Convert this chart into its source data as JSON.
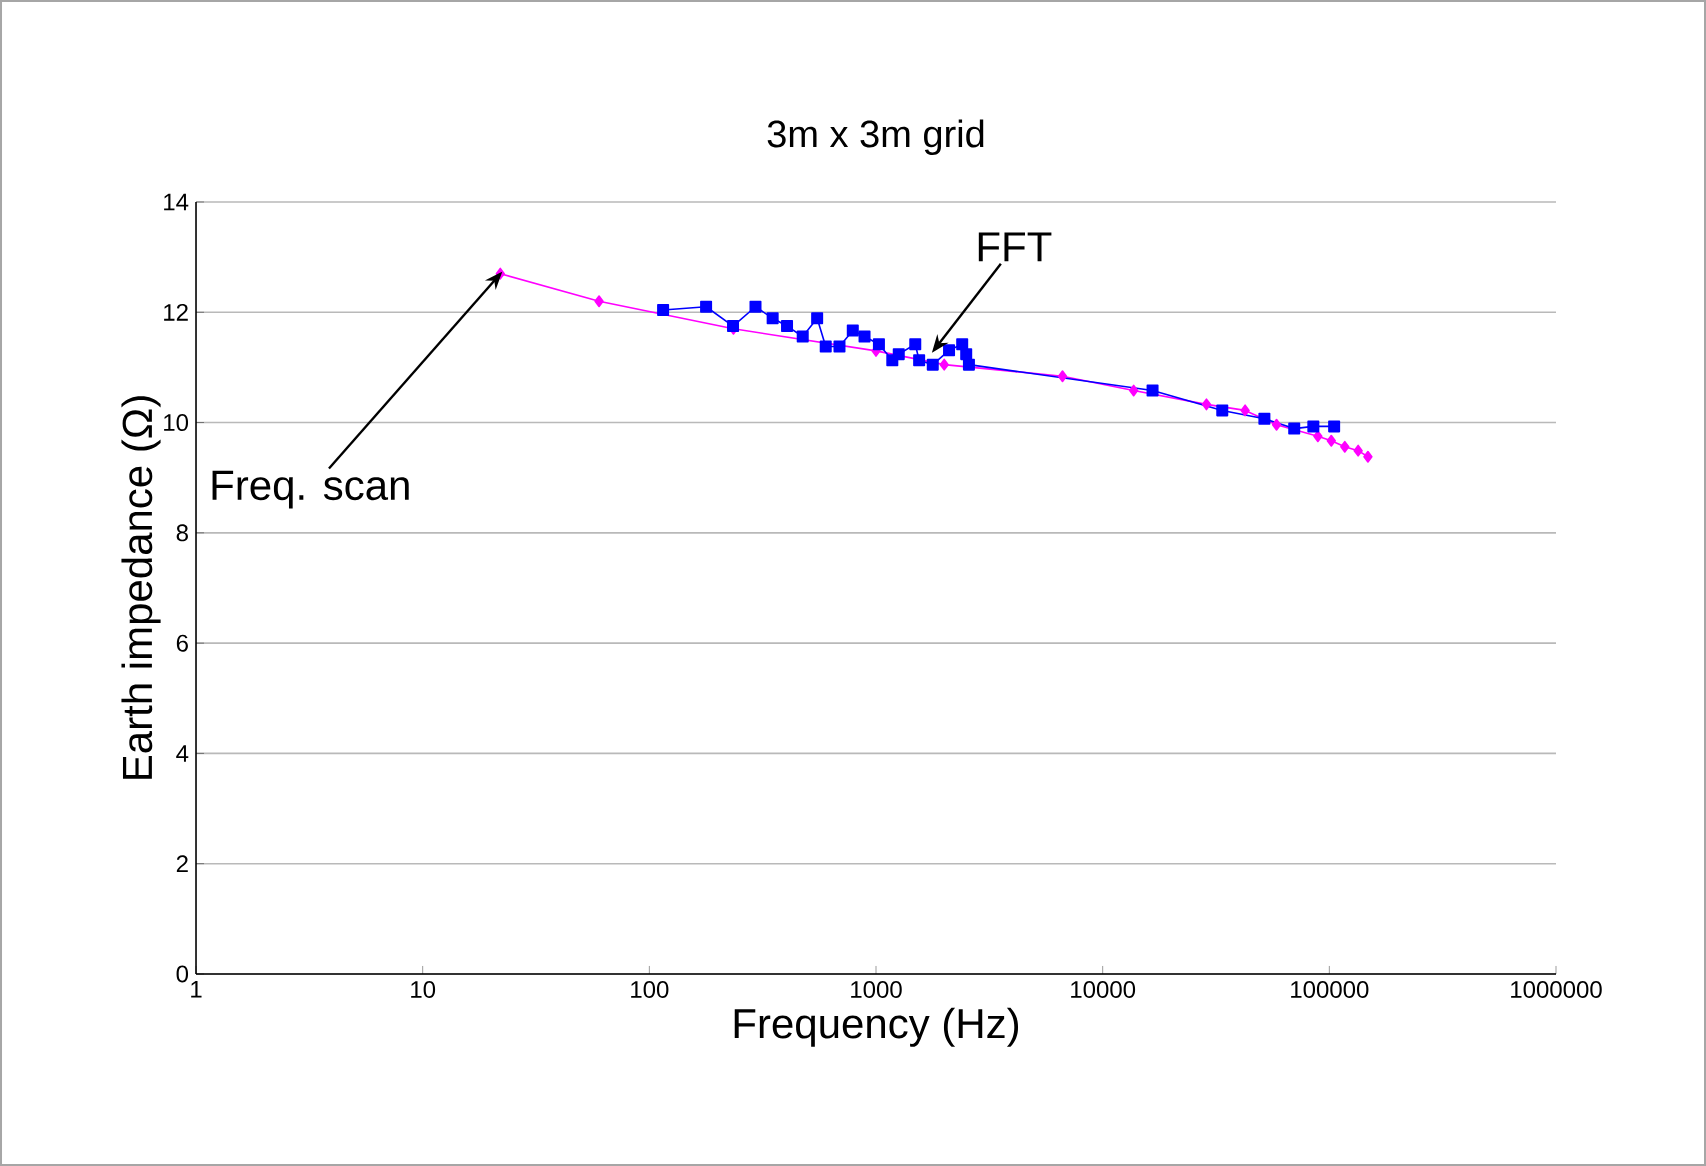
{
  "chart_data": {
    "type": "line",
    "title": "3m x 3m grid",
    "xlabel": "Frequency (Hz)",
    "ylabel": "Earth impedance (Ω)",
    "log": "x",
    "grid": "y",
    "xlim": [
      1,
      1000000
    ],
    "xticks": [
      1,
      10,
      100,
      1000,
      10000,
      100000,
      1000000
    ],
    "ylim": [
      0,
      14
    ],
    "yticks": [
      0,
      2,
      4,
      6,
      8,
      10,
      12,
      14
    ],
    "annotations": [
      {
        "text": "Freq. scan",
        "x": 22,
        "y": 12.7
      },
      {
        "text": "FFT",
        "x": 1800,
        "y": 11.3
      }
    ],
    "series": [
      {
        "color": "#ff00ff",
        "marker": "diamond",
        "x": [
          22,
          60,
          235,
          1000,
          2000,
          6650,
          13700,
          28700,
          42500,
          58500,
          89000,
          102000,
          117000,
          134000,
          148000
        ],
        "values": [
          12.7,
          12.2,
          11.7,
          11.3,
          11.05,
          10.84,
          10.58,
          10.33,
          10.22,
          9.96,
          9.75,
          9.67,
          9.56,
          9.49,
          9.38
        ]
      },
      {
        "color": "#0000ff",
        "marker": "square",
        "x": [
          115,
          178,
          234,
          294,
          350,
          405,
          475,
          550,
          600,
          690,
          790,
          890,
          1030,
          1180,
          1260,
          1490,
          1550,
          1780,
          2100,
          2400,
          2500,
          2570,
          16600,
          33700,
          51700,
          70000,
          85000,
          105000
        ],
        "values": [
          12.04,
          12.1,
          11.75,
          12.1,
          11.89,
          11.75,
          11.56,
          11.89,
          11.38,
          11.38,
          11.67,
          11.56,
          11.42,
          11.13,
          11.24,
          11.42,
          11.13,
          11.05,
          11.31,
          11.42,
          11.24,
          11.05,
          10.58,
          10.22,
          10.07,
          9.89,
          9.93,
          9.93
        ]
      }
    ]
  }
}
